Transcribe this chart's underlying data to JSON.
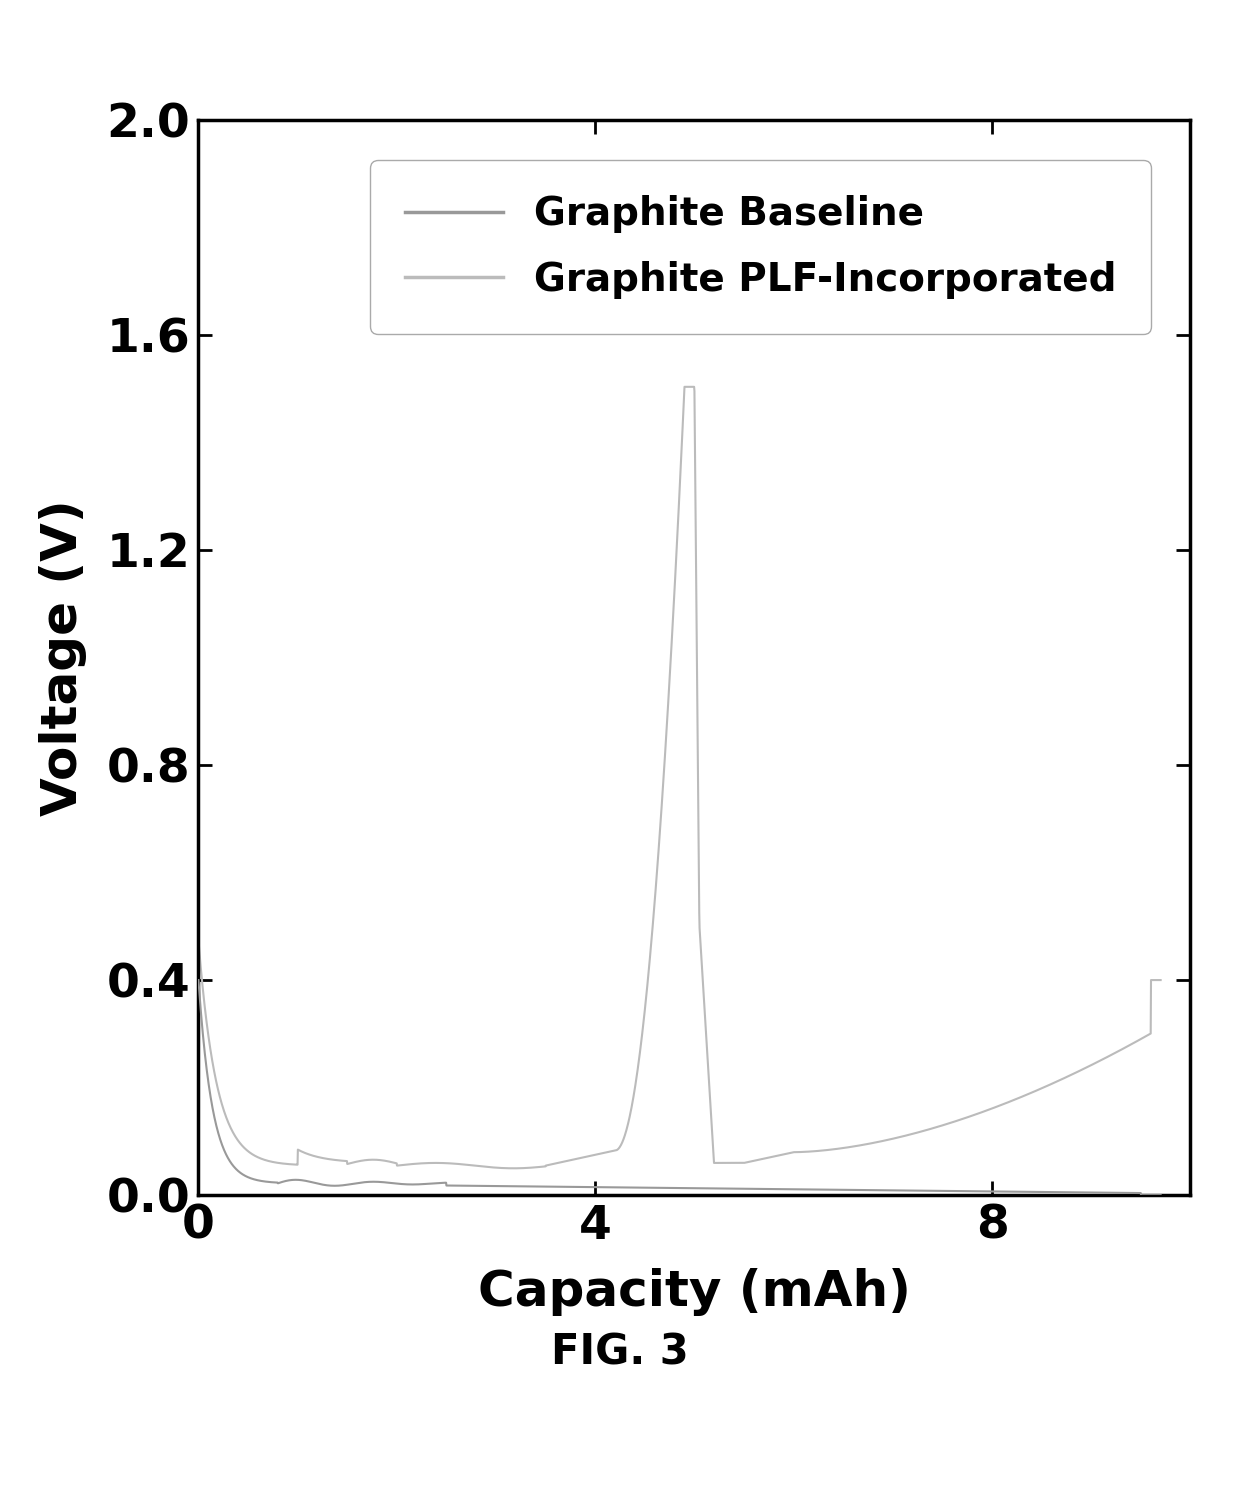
{
  "xlabel": "Capacity (mAh)",
  "ylabel": "Voltage (V)",
  "xlabel_fontsize": 36,
  "ylabel_fontsize": 36,
  "tick_fontsize": 34,
  "legend_labels": [
    "Graphite Baseline",
    "Graphite PLF-Incorporated"
  ],
  "legend_color_baseline": "#999999",
  "legend_color_plf": "#bbbbbb",
  "legend_fontsize": 28,
  "xlim": [
    0,
    10
  ],
  "ylim": [
    0,
    2.0
  ],
  "xticks": [
    0,
    4,
    8
  ],
  "yticks": [
    0,
    0.4,
    0.8,
    1.2,
    1.6,
    2.0
  ],
  "background_color": "#ffffff",
  "figcaption": "FIG. 3",
  "figcaption_fontsize": 30,
  "line_width": 1.5
}
